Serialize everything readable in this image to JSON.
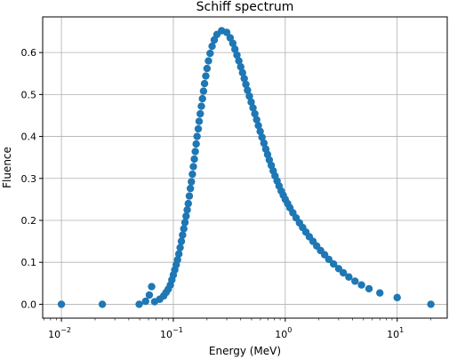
{
  "chart_data": {
    "type": "scatter",
    "title": "Schiff spectrum",
    "xlabel": "Energy (MeV)",
    "ylabel": "Fluence",
    "xscale": "log",
    "xlim": [
      0.0068,
      28
    ],
    "ylim": [
      -0.033,
      0.685
    ],
    "grid": true,
    "marker_color": "#1f77b4",
    "x_ticks": [
      {
        "value": 0.01,
        "base": "10",
        "exp": "−2"
      },
      {
        "value": 0.1,
        "base": "10",
        "exp": "−1"
      },
      {
        "value": 1,
        "base": "10",
        "exp": "0"
      },
      {
        "value": 10,
        "base": "10",
        "exp": "1"
      }
    ],
    "y_ticks": [
      {
        "value": 0.0,
        "label": "0.0"
      },
      {
        "value": 0.1,
        "label": "0.1"
      },
      {
        "value": 0.2,
        "label": "0.2"
      },
      {
        "value": 0.3,
        "label": "0.3"
      },
      {
        "value": 0.4,
        "label": "0.4"
      },
      {
        "value": 0.5,
        "label": "0.5"
      },
      {
        "value": 0.6,
        "label": "0.6"
      }
    ],
    "points": [
      [
        0.01,
        0.0
      ],
      [
        0.0232,
        0.0
      ],
      [
        0.0495,
        0.0
      ],
      [
        0.0565,
        0.007
      ],
      [
        0.061,
        0.022
      ],
      [
        0.064,
        0.042
      ],
      [
        0.068,
        0.006
      ],
      [
        0.0755,
        0.012
      ],
      [
        0.082,
        0.02
      ],
      [
        0.086,
        0.028
      ],
      [
        0.09,
        0.036
      ],
      [
        0.094,
        0.046
      ],
      [
        0.097,
        0.058
      ],
      [
        0.1,
        0.07
      ],
      [
        0.103,
        0.082
      ],
      [
        0.106,
        0.094
      ],
      [
        0.109,
        0.106
      ],
      [
        0.112,
        0.12
      ],
      [
        0.115,
        0.135
      ],
      [
        0.118,
        0.15
      ],
      [
        0.121,
        0.165
      ],
      [
        0.124,
        0.18
      ],
      [
        0.127,
        0.195
      ],
      [
        0.13,
        0.21
      ],
      [
        0.133,
        0.225
      ],
      [
        0.136,
        0.24
      ],
      [
        0.139,
        0.258
      ],
      [
        0.142,
        0.276
      ],
      [
        0.145,
        0.292
      ],
      [
        0.148,
        0.31
      ],
      [
        0.151,
        0.328
      ],
      [
        0.154,
        0.346
      ],
      [
        0.157,
        0.364
      ],
      [
        0.16,
        0.382
      ],
      [
        0.163,
        0.4
      ],
      [
        0.167,
        0.418
      ],
      [
        0.17,
        0.436
      ],
      [
        0.174,
        0.454
      ],
      [
        0.178,
        0.472
      ],
      [
        0.182,
        0.49
      ],
      [
        0.186,
        0.508
      ],
      [
        0.19,
        0.526
      ],
      [
        0.195,
        0.544
      ],
      [
        0.2,
        0.562
      ],
      [
        0.206,
        0.58
      ],
      [
        0.213,
        0.598
      ],
      [
        0.222,
        0.615
      ],
      [
        0.232,
        0.63
      ],
      [
        0.245,
        0.643
      ],
      [
        0.27,
        0.652
      ],
      [
        0.3,
        0.648
      ],
      [
        0.322,
        0.635
      ],
      [
        0.34,
        0.622
      ],
      [
        0.355,
        0.608
      ],
      [
        0.37,
        0.594
      ],
      [
        0.385,
        0.58
      ],
      [
        0.4,
        0.566
      ],
      [
        0.415,
        0.552
      ],
      [
        0.43,
        0.538
      ],
      [
        0.445,
        0.524
      ],
      [
        0.46,
        0.51
      ],
      [
        0.478,
        0.496
      ],
      [
        0.496,
        0.482
      ],
      [
        0.515,
        0.468
      ],
      [
        0.535,
        0.454
      ],
      [
        0.555,
        0.44
      ],
      [
        0.575,
        0.426
      ],
      [
        0.597,
        0.412
      ],
      [
        0.62,
        0.398
      ],
      [
        0.645,
        0.384
      ],
      [
        0.67,
        0.37
      ],
      [
        0.695,
        0.357
      ],
      [
        0.72,
        0.344
      ],
      [
        0.75,
        0.331
      ],
      [
        0.78,
        0.318
      ],
      [
        0.81,
        0.306
      ],
      [
        0.845,
        0.294
      ],
      [
        0.88,
        0.282
      ],
      [
        0.92,
        0.27
      ],
      [
        0.96,
        0.26
      ],
      [
        1.0,
        0.25
      ],
      [
        1.05,
        0.24
      ],
      [
        1.1,
        0.23
      ],
      [
        1.17,
        0.218
      ],
      [
        1.25,
        0.206
      ],
      [
        1.34,
        0.194
      ],
      [
        1.43,
        0.183
      ],
      [
        1.53,
        0.172
      ],
      [
        1.64,
        0.161
      ],
      [
        1.77,
        0.15
      ],
      [
        1.91,
        0.139
      ],
      [
        2.07,
        0.128
      ],
      [
        2.25,
        0.118
      ],
      [
        2.45,
        0.107
      ],
      [
        2.7,
        0.096
      ],
      [
        3.0,
        0.085
      ],
      [
        3.3,
        0.075
      ],
      [
        3.7,
        0.065
      ],
      [
        4.2,
        0.055
      ],
      [
        4.8,
        0.046
      ],
      [
        5.6,
        0.037
      ],
      [
        7.0,
        0.027
      ],
      [
        10.0,
        0.016
      ],
      [
        20.0,
        0.0
      ]
    ]
  }
}
